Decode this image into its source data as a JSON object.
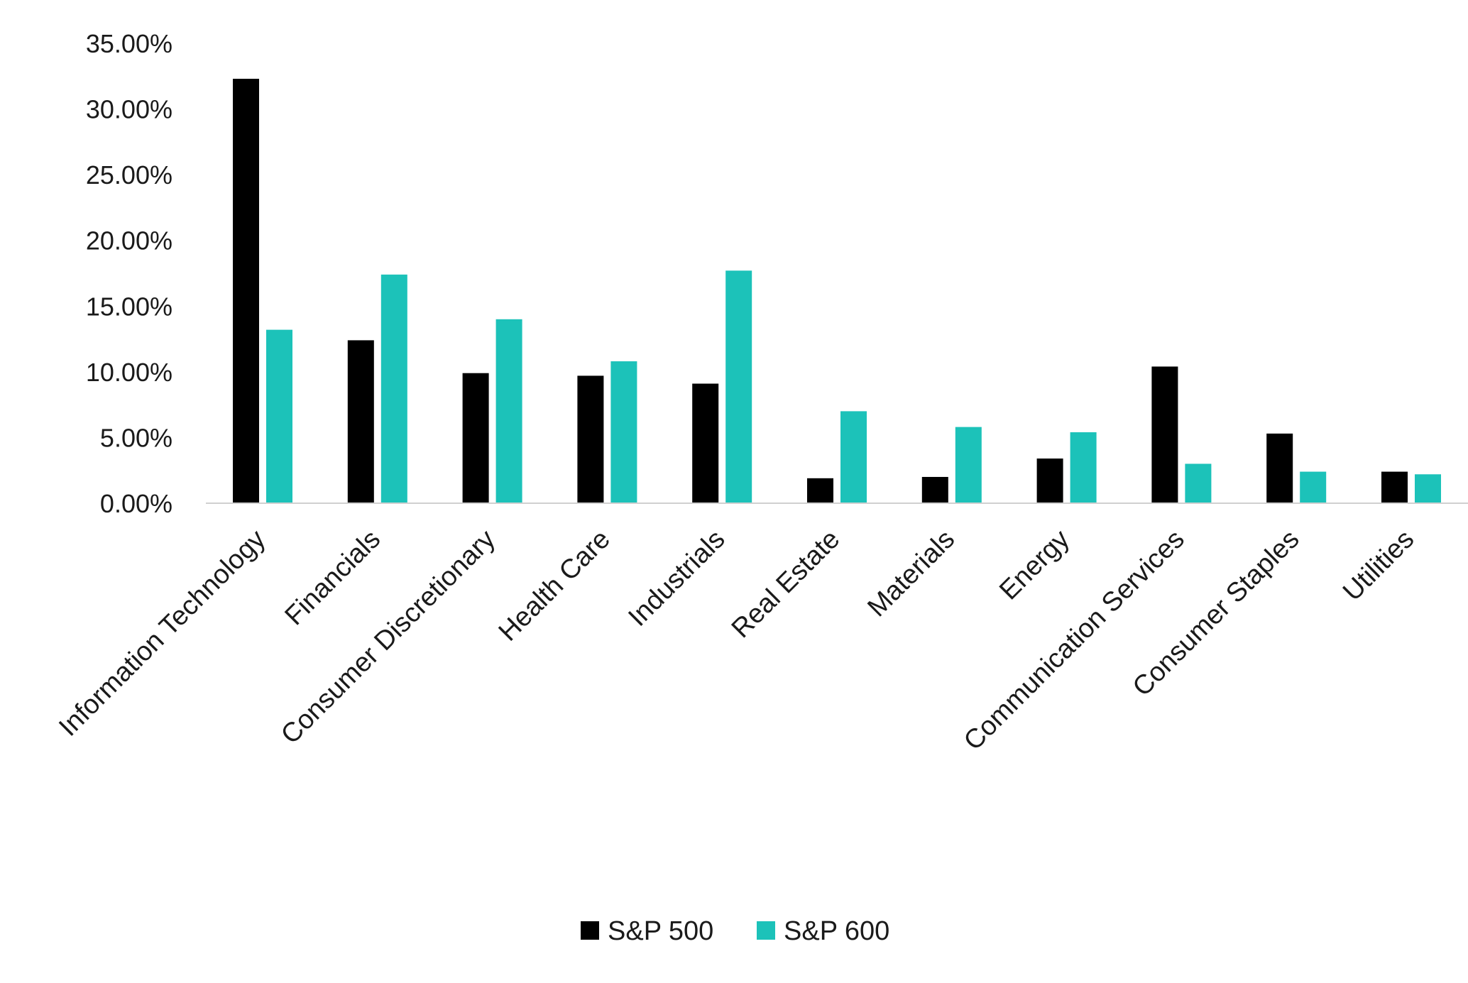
{
  "chart_data": {
    "type": "bar",
    "title": "",
    "xlabel": "",
    "ylabel": "",
    "ylim": [
      0,
      35
    ],
    "yticks": [
      {
        "value": 0,
        "label": "0.00%"
      },
      {
        "value": 5,
        "label": "5.00%"
      },
      {
        "value": 10,
        "label": "10.00%"
      },
      {
        "value": 15,
        "label": "15.00%"
      },
      {
        "value": 20,
        "label": "20.00%"
      },
      {
        "value": 25,
        "label": "25.00%"
      },
      {
        "value": 30,
        "label": "30.00%"
      },
      {
        "value": 35,
        "label": "35.00%"
      }
    ],
    "grid": false,
    "legend_position": "bottom",
    "categories": [
      "Information Technology",
      "Financials",
      "Consumer Discretionary",
      "Health Care",
      "Industrials",
      "Real Estate",
      "Materials",
      "Energy",
      "Communication Services",
      "Consumer Staples",
      "Utilities"
    ],
    "series": [
      {
        "name": "S&P 500",
        "color": "#000000",
        "values": [
          32.3,
          12.4,
          9.9,
          9.7,
          9.1,
          1.9,
          2.0,
          3.4,
          10.4,
          5.3,
          2.4
        ]
      },
      {
        "name": "S&P 600",
        "color": "#1cc2b9",
        "values": [
          13.2,
          17.4,
          14.0,
          10.8,
          17.7,
          7.0,
          5.8,
          5.4,
          3.0,
          2.4,
          2.2
        ]
      }
    ],
    "axis_color": "#d0d0d0"
  }
}
